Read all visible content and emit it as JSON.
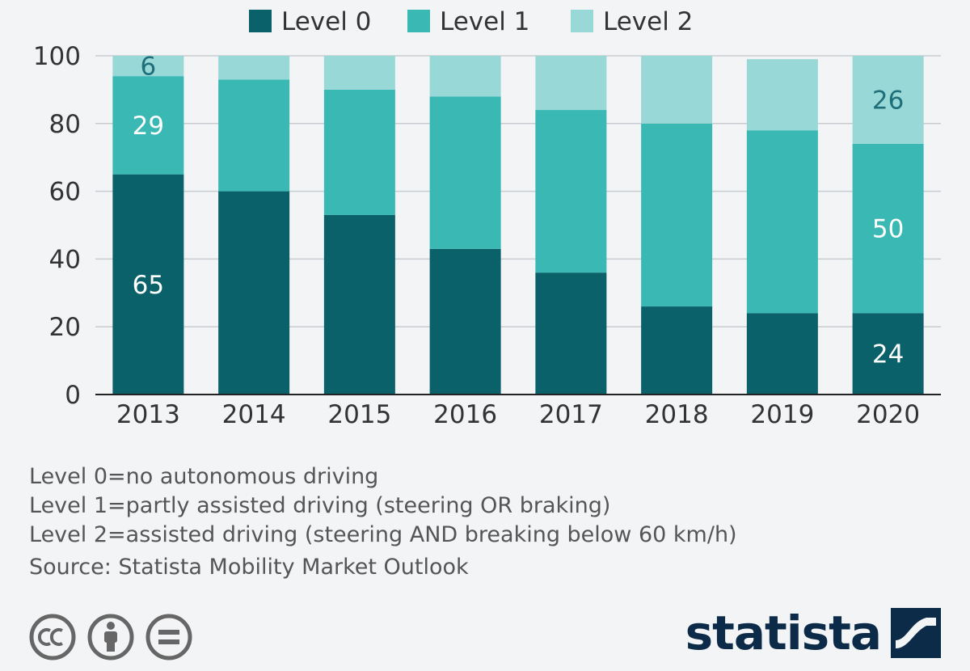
{
  "chart_data": {
    "type": "bar",
    "stacked": true,
    "categories": [
      "2013",
      "2014",
      "2015",
      "2016",
      "2017",
      "2018",
      "2019",
      "2020"
    ],
    "series": [
      {
        "name": "Level 0",
        "color": "#0b616a",
        "values": [
          65,
          60,
          53,
          43,
          36,
          26,
          24,
          24
        ]
      },
      {
        "name": "Level 1",
        "color": "#3ab8b4",
        "values": [
          29,
          33,
          37,
          45,
          48,
          54,
          54,
          50
        ]
      },
      {
        "name": "Level 2",
        "color": "#98d9d7",
        "values": [
          6,
          7,
          10,
          12,
          16,
          20,
          21,
          26
        ]
      }
    ],
    "data_labels": [
      {
        "series": 0,
        "category": 0,
        "text": "65"
      },
      {
        "series": 1,
        "category": 0,
        "text": "29"
      },
      {
        "series": 2,
        "category": 0,
        "text": "6"
      },
      {
        "series": 0,
        "category": 7,
        "text": "24"
      },
      {
        "series": 1,
        "category": 7,
        "text": "50"
      },
      {
        "series": 2,
        "category": 7,
        "text": "26"
      }
    ],
    "y_ticks": [
      "0",
      "20",
      "40",
      "60",
      "80",
      "100"
    ],
    "ylim": [
      0,
      100
    ],
    "grid": true,
    "legend_position": "top-center"
  },
  "notes": [
    "Level 0=no autonomous driving",
    "Level 1=partly assisted driving (steering OR braking)",
    "Level 2=assisted driving (steering AND breaking below 60 km/h)"
  ],
  "source": "Source: Statista Mobility Market Outlook",
  "brand": "statista",
  "license_icons": [
    "cc-icon",
    "attribution-icon",
    "no-derivatives-icon"
  ]
}
